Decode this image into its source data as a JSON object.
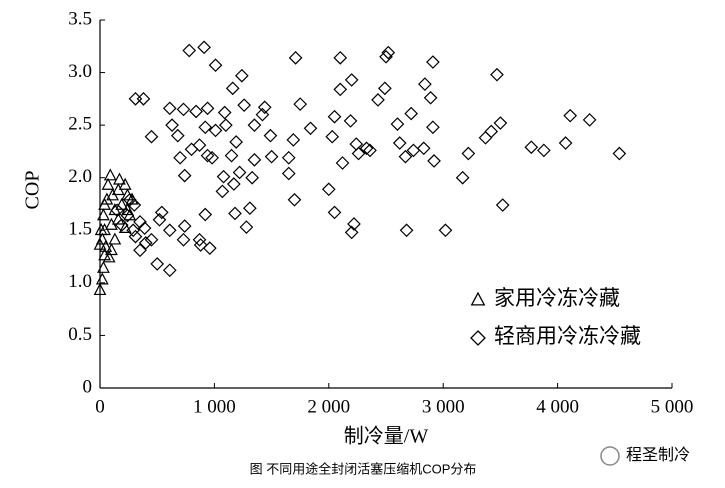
{
  "chart_data": {
    "type": "scatter",
    "x_label": "制冷量/W",
    "y_label": "COP",
    "caption": "图  不同用途全封闭活塞压缩机COP分布",
    "watermark": "程圣制冷",
    "xlim": [
      0,
      5000
    ],
    "ylim": [
      0,
      3.5
    ],
    "xticks": [
      0,
      {
        "value": 1000,
        "label": "1 000"
      },
      {
        "value": 2000,
        "label": "2 000"
      },
      {
        "value": 3000,
        "label": "3 000"
      },
      {
        "value": 4000,
        "label": "4 000"
      },
      {
        "value": 5000,
        "label": "5 000"
      }
    ],
    "yticks": [
      0,
      0.5,
      {
        "value": 1,
        "label": "1.0"
      },
      1.5,
      {
        "value": 2,
        "label": "2.0"
      },
      2.5,
      {
        "value": 3,
        "label": "3.0"
      },
      3.5
    ],
    "legend_position": "lower right",
    "series": [
      {
        "name": "家用冷冻冷藏",
        "marker": "triangle",
        "color": "#000000",
        "x": [
          0,
          20,
          30,
          40,
          20,
          40,
          30,
          60,
          70,
          90,
          100,
          130,
          100,
          160,
          170,
          220,
          240,
          190,
          130,
          160,
          220,
          50,
          80,
          260,
          280,
          240,
          110,
          40,
          0,
          10
        ],
        "y": [
          0.93,
          1.03,
          1.14,
          1.26,
          1.41,
          1.5,
          1.64,
          1.79,
          1.93,
          2.02,
          1.31,
          1.41,
          1.55,
          1.88,
          1.98,
          1.93,
          1.83,
          1.74,
          1.69,
          1.6,
          1.52,
          1.34,
          1.24,
          1.64,
          1.79,
          1.69,
          1.83,
          1.74,
          1.36,
          1.5
        ]
      },
      {
        "name": "轻商用冷冻冷藏",
        "marker": "diamond",
        "color": "#000000",
        "x": [
          780,
          910,
          1010,
          1710,
          2100,
          2500,
          2910,
          3470,
          1240,
          2520,
          310,
          380,
          1160,
          2200,
          2100,
          2490,
          2840,
          2890,
          2430,
          1750,
          610,
          730,
          840,
          940,
          1090,
          1260,
          1420,
          1440,
          1350,
          2050,
          2190,
          2600,
          2720,
          2910,
          3500,
          4110,
          4280,
          630,
          680,
          450,
          920,
          1010,
          1100,
          1490,
          1840,
          2030,
          1190,
          1690,
          2240,
          2330,
          2360,
          2260,
          2620,
          2740,
          2830,
          3370,
          3420,
          3770,
          3880,
          4070,
          4540,
          3220,
          800,
          870,
          940,
          700,
          980,
          1150,
          1350,
          1500,
          1650,
          2120,
          2920,
          2670,
          740,
          1080,
          1220,
          1330,
          1070,
          1170,
          1650,
          2000,
          3170,
          1700,
          3520,
          2050,
          1180,
          920,
          1310,
          520,
          740,
          1280,
          2220,
          2200,
          2680,
          3020,
          610,
          730,
          870,
          960,
          880,
          610,
          500,
          400,
          450,
          350,
          310,
          540,
          260,
          300,
          240,
          350,
          190,
          390,
          290,
          150
        ],
        "y": [
          3.21,
          3.24,
          3.07,
          3.14,
          3.14,
          3.15,
          3.1,
          2.98,
          2.97,
          3.19,
          2.75,
          2.75,
          2.85,
          2.93,
          2.84,
          2.85,
          2.89,
          2.76,
          2.74,
          2.7,
          2.66,
          2.65,
          2.63,
          2.66,
          2.62,
          2.69,
          2.6,
          2.67,
          2.5,
          2.58,
          2.54,
          2.51,
          2.61,
          2.48,
          2.52,
          2.59,
          2.55,
          2.5,
          2.4,
          2.39,
          2.48,
          2.45,
          2.5,
          2.4,
          2.47,
          2.39,
          2.34,
          2.36,
          2.32,
          2.28,
          2.26,
          2.23,
          2.33,
          2.26,
          2.28,
          2.38,
          2.44,
          2.29,
          2.26,
          2.33,
          2.23,
          2.23,
          2.27,
          2.31,
          2.21,
          2.19,
          2.19,
          2.21,
          2.17,
          2.2,
          2.19,
          2.14,
          2.16,
          2.2,
          2.02,
          2.01,
          2.05,
          2.0,
          1.87,
          1.94,
          2.04,
          1.89,
          2.0,
          1.79,
          1.74,
          1.67,
          1.66,
          1.65,
          1.71,
          1.6,
          1.54,
          1.53,
          1.56,
          1.48,
          1.5,
          1.5,
          1.5,
          1.41,
          1.41,
          1.33,
          1.36,
          1.12,
          1.18,
          1.38,
          1.41,
          1.31,
          1.44,
          1.67,
          1.79,
          1.74,
          1.64,
          1.58,
          1.55,
          1.52,
          1.5,
          1.69
        ]
      }
    ]
  }
}
